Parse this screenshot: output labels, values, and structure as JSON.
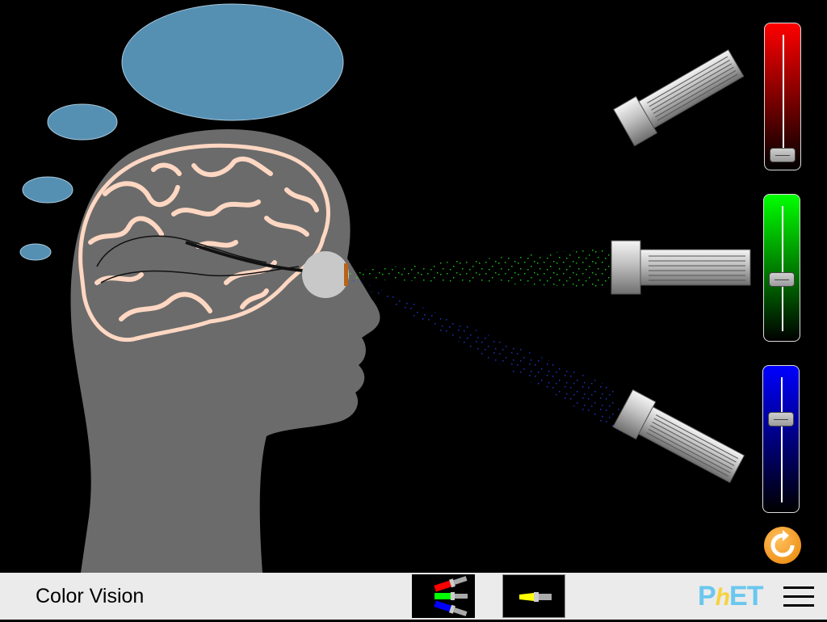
{
  "sim": {
    "title": "Color Vision"
  },
  "colors": {
    "background": "#000000",
    "head": "#6b6b6b",
    "brain_outline": "#ffd7c2",
    "thought_bubble": "#5590b3",
    "navbar": "#ebebeb",
    "beam_green": "#00ff00",
    "beam_blue": "#1a3cff"
  },
  "sliders": [
    {
      "name": "red",
      "color": "#ff0000",
      "value": 0.05
    },
    {
      "name": "green",
      "color": "#00ff00",
      "value": 0.5
    },
    {
      "name": "blue",
      "color": "#0000ff",
      "value": 0.75
    }
  ],
  "navbar": {
    "screens": [
      {
        "name": "RGB Bulbs",
        "icon": "rgb-flashlights-icon",
        "selected": true
      },
      {
        "name": "Single Bulb",
        "icon": "yellow-flashlight-icon",
        "selected": false
      }
    ],
    "logo": {
      "p": "P",
      "h": "h",
      "et": "ET"
    },
    "menu_icon": "hamburger-menu-icon"
  },
  "icons": {
    "reset": "reset-all-icon"
  }
}
